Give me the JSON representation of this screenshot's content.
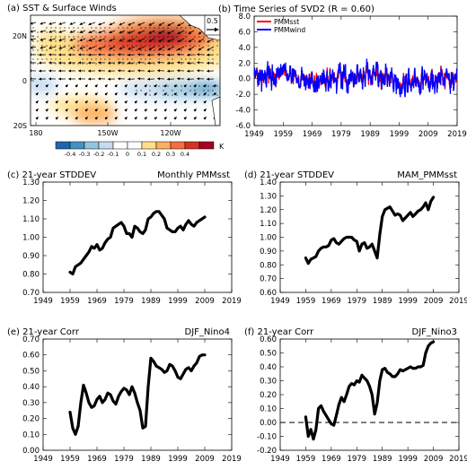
{
  "chart_data": [
    {
      "type": "heatmap",
      "title": "(a) SST & Surface Winds",
      "lat_ticks": [
        "20N",
        "0",
        "20S"
      ],
      "lon_ticks": [
        "180",
        "150W",
        "120W"
      ],
      "reference_vector": "0.5",
      "colorbar": {
        "labels": [
          "-0.4",
          "-0.3",
          "-0.2",
          "-0.1",
          "0",
          "0.1",
          "0.2",
          "0.3",
          "0.4"
        ],
        "unit": "K",
        "colors": [
          "#2166ac",
          "#4393c3",
          "#92c5de",
          "#c6dbef",
          "#ffffff",
          "#ffffff",
          "#fee08b",
          "#fdae61",
          "#f46d43",
          "#d73027",
          "#a50026"
        ]
      },
      "pattern": "Warm anomaly band from the northeast toward the central Pacific near 15-20N; cool anomalies along the equator in the east; easterly to southwesterly wind anomalies; stippling over much of the domain."
    },
    {
      "type": "line",
      "title": "(b) Time Series of SVD2 (R = 0.60)",
      "series": [
        {
          "name": "PMMsst",
          "color": "#ff0000",
          "values": []
        },
        {
          "name": "PMMwind",
          "color": "#0000ff",
          "values": []
        }
      ],
      "xlim": [
        1949,
        2019
      ],
      "ylim": [
        -6,
        8
      ],
      "xticks": [
        "1949",
        "1959",
        "1969",
        "1979",
        "1989",
        "1999",
        "2009",
        "2019"
      ],
      "yticks": [
        "-6.0",
        "-4.0",
        "-2.0",
        "0.0",
        "2.0",
        "4.0",
        "6.0",
        "8.0"
      ],
      "seed": 13
    },
    {
      "type": "line",
      "title": "(c) 21-year STDDEV",
      "label_right": "Monthly  PMMsst",
      "xlim": [
        1949,
        2019
      ],
      "ylim": [
        0.7,
        1.3
      ],
      "xticks": [
        "1949",
        "1959",
        "1969",
        "1979",
        "1989",
        "1999",
        "2009",
        "2019"
      ],
      "yticks": [
        "0.70",
        "0.80",
        "0.90",
        "1.00",
        "1.10",
        "1.20",
        "1.30"
      ],
      "x": [
        1959,
        1960,
        1961,
        1962,
        1963,
        1964,
        1965,
        1966,
        1967,
        1968,
        1969,
        1970,
        1971,
        1972,
        1973,
        1974,
        1975,
        1976,
        1977,
        1978,
        1979,
        1980,
        1981,
        1982,
        1983,
        1984,
        1985,
        1986,
        1987,
        1988,
        1989,
        1990,
        1991,
        1992,
        1993,
        1994,
        1995,
        1996,
        1997,
        1998,
        1999,
        2000,
        2001,
        2002,
        2003,
        2004,
        2005,
        2006,
        2007,
        2008,
        2009
      ],
      "values": [
        0.81,
        0.8,
        0.84,
        0.85,
        0.86,
        0.88,
        0.9,
        0.92,
        0.95,
        0.94,
        0.96,
        0.93,
        0.94,
        0.97,
        0.99,
        1.0,
        1.05,
        1.06,
        1.07,
        1.08,
        1.06,
        1.02,
        1.02,
        1.0,
        1.06,
        1.05,
        1.03,
        1.02,
        1.04,
        1.1,
        1.11,
        1.13,
        1.14,
        1.14,
        1.12,
        1.1,
        1.05,
        1.04,
        1.03,
        1.03,
        1.05,
        1.06,
        1.04,
        1.07,
        1.09,
        1.07,
        1.06,
        1.08,
        1.09,
        1.1,
        1.11
      ]
    },
    {
      "type": "line",
      "title": "(d) 21-year STDDEV",
      "label_right": "MAM_PMMsst",
      "xlim": [
        1949,
        2019
      ],
      "ylim": [
        0.6,
        1.4
      ],
      "xticks": [
        "1949",
        "1959",
        "1969",
        "1979",
        "1989",
        "1999",
        "2009",
        "2019"
      ],
      "yticks": [
        "0.60",
        "0.70",
        "0.80",
        "0.90",
        "1.00",
        "1.10",
        "1.20",
        "1.30",
        "1.40"
      ],
      "x": [
        1959,
        1960,
        1961,
        1962,
        1963,
        1964,
        1965,
        1966,
        1967,
        1968,
        1969,
        1970,
        1971,
        1972,
        1973,
        1974,
        1975,
        1976,
        1977,
        1978,
        1979,
        1980,
        1981,
        1982,
        1983,
        1984,
        1985,
        1986,
        1987,
        1988,
        1989,
        1990,
        1991,
        1992,
        1993,
        1994,
        1995,
        1996,
        1997,
        1998,
        1999,
        2000,
        2001,
        2002,
        2003,
        2004,
        2005,
        2006,
        2007,
        2008,
        2009
      ],
      "values": [
        0.85,
        0.81,
        0.84,
        0.85,
        0.86,
        0.9,
        0.92,
        0.93,
        0.93,
        0.94,
        0.98,
        0.99,
        0.96,
        0.95,
        0.97,
        0.99,
        1.0,
        1.0,
        1.0,
        0.98,
        0.97,
        0.9,
        0.95,
        0.96,
        0.92,
        0.93,
        0.95,
        0.9,
        0.85,
        1.02,
        1.15,
        1.2,
        1.21,
        1.22,
        1.19,
        1.16,
        1.17,
        1.16,
        1.12,
        1.14,
        1.16,
        1.18,
        1.15,
        1.17,
        1.19,
        1.2,
        1.22,
        1.25,
        1.2,
        1.26,
        1.29
      ]
    },
    {
      "type": "line",
      "title": "(e) 21-year Corr",
      "label_right": "DJF_Nino4",
      "xlim": [
        1949,
        2019
      ],
      "ylim": [
        0.0,
        0.7
      ],
      "xticks": [
        "1949",
        "1959",
        "1969",
        "1979",
        "1989",
        "1999",
        "2009",
        "2019"
      ],
      "yticks": [
        "0.00",
        "0.10",
        "0.20",
        "0.30",
        "0.40",
        "0.50",
        "0.60",
        "0.70"
      ],
      "x": [
        1959,
        1960,
        1961,
        1962,
        1963,
        1964,
        1965,
        1966,
        1967,
        1968,
        1969,
        1970,
        1971,
        1972,
        1973,
        1974,
        1975,
        1976,
        1977,
        1978,
        1979,
        1980,
        1981,
        1982,
        1983,
        1984,
        1985,
        1986,
        1987,
        1988,
        1989,
        1990,
        1991,
        1992,
        1993,
        1994,
        1995,
        1996,
        1997,
        1998,
        1999,
        2000,
        2001,
        2002,
        2003,
        2004,
        2005,
        2006,
        2007,
        2008,
        2009
      ],
      "values": [
        0.24,
        0.14,
        0.1,
        0.15,
        0.3,
        0.41,
        0.36,
        0.3,
        0.27,
        0.28,
        0.32,
        0.34,
        0.3,
        0.32,
        0.36,
        0.35,
        0.31,
        0.29,
        0.34,
        0.37,
        0.39,
        0.38,
        0.35,
        0.4,
        0.36,
        0.3,
        0.25,
        0.14,
        0.15,
        0.4,
        0.58,
        0.56,
        0.53,
        0.52,
        0.51,
        0.49,
        0.5,
        0.54,
        0.53,
        0.5,
        0.46,
        0.45,
        0.48,
        0.51,
        0.52,
        0.5,
        0.53,
        0.55,
        0.59,
        0.6,
        0.6
      ]
    },
    {
      "type": "line",
      "title": "(f) 21-year Corr",
      "label_right": "DJF_Nino3",
      "xlim": [
        1949,
        2019
      ],
      "ylim": [
        -0.2,
        0.6
      ],
      "reference_line": 0.0,
      "xticks": [
        "1949",
        "1959",
        "1969",
        "1979",
        "1989",
        "1999",
        "2009",
        "2019"
      ],
      "yticks": [
        "-0.20",
        "-0.10",
        "0.00",
        "0.10",
        "0.20",
        "0.30",
        "0.40",
        "0.50",
        "0.60"
      ],
      "x": [
        1959,
        1960,
        1961,
        1962,
        1963,
        1964,
        1965,
        1966,
        1967,
        1968,
        1969,
        1970,
        1971,
        1972,
        1973,
        1974,
        1975,
        1976,
        1977,
        1978,
        1979,
        1980,
        1981,
        1982,
        1983,
        1984,
        1985,
        1986,
        1987,
        1988,
        1989,
        1990,
        1991,
        1992,
        1993,
        1994,
        1995,
        1996,
        1997,
        1998,
        1999,
        2000,
        2001,
        2002,
        2003,
        2004,
        2005,
        2006,
        2007,
        2008,
        2009
      ],
      "values": [
        0.04,
        -0.1,
        -0.05,
        -0.12,
        -0.05,
        0.1,
        0.12,
        0.08,
        0.05,
        0.02,
        -0.01,
        -0.02,
        0.05,
        0.13,
        0.18,
        0.15,
        0.2,
        0.26,
        0.28,
        0.27,
        0.3,
        0.29,
        0.34,
        0.32,
        0.3,
        0.26,
        0.2,
        0.06,
        0.14,
        0.3,
        0.38,
        0.39,
        0.36,
        0.35,
        0.33,
        0.33,
        0.35,
        0.38,
        0.37,
        0.38,
        0.39,
        0.4,
        0.39,
        0.39,
        0.4,
        0.4,
        0.41,
        0.5,
        0.55,
        0.57,
        0.58
      ]
    }
  ]
}
